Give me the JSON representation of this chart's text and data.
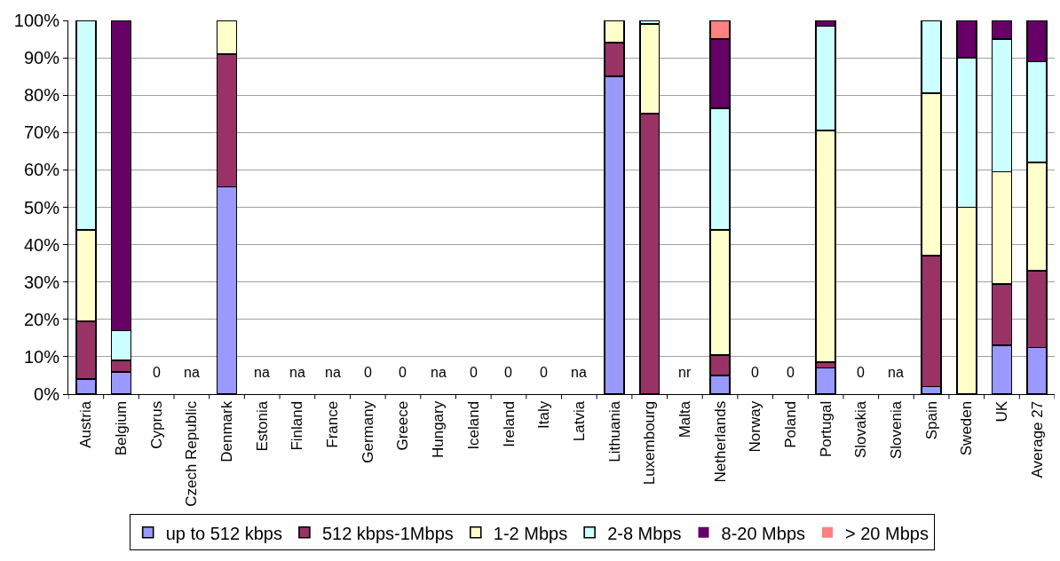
{
  "chart_data": {
    "type": "bar",
    "stacked": true,
    "grid": "y",
    "legend": "bottom",
    "categories": [
      "Austria",
      "Belgium",
      "Cyprus",
      "Czech Republic",
      "Denmark",
      "Estonia",
      "Finland",
      "France",
      "Germany",
      "Greece",
      "Hungary",
      "Iceland",
      "Ireland",
      "Italy",
      "Latvia",
      "Lithuania",
      "Luxembourg",
      "Malta",
      "Netherlands",
      "Norway",
      "Poland",
      "Portugal",
      "Slovakia",
      "Slovenia",
      "Spain",
      "Sweden",
      "UK",
      "Average 27"
    ],
    "series": [
      {
        "name": "up to 512 kbps",
        "color": "#9999ff",
        "values": [
          4,
          6,
          0,
          null,
          55.5,
          null,
          null,
          null,
          0,
          0,
          null,
          0,
          0,
          0,
          null,
          85,
          0,
          null,
          5,
          0,
          0,
          7,
          0,
          null,
          2,
          0,
          13,
          12.5
        ],
        "value_labels": [
          null,
          null,
          "0",
          "na",
          null,
          "na",
          "na",
          "na",
          "0",
          "0",
          "na",
          "0",
          "0",
          "0",
          "na",
          null,
          null,
          "nr",
          null,
          "0",
          "0",
          null,
          "0",
          "na",
          null,
          null,
          null,
          null
        ]
      },
      {
        "name": "512 kbps-1Mbps",
        "color": "#993366",
        "values": [
          15.5,
          3,
          null,
          null,
          35.5,
          null,
          null,
          null,
          null,
          null,
          null,
          null,
          null,
          null,
          null,
          9,
          75,
          null,
          5.5,
          null,
          null,
          1.5,
          null,
          null,
          35,
          0,
          16.5,
          20.5
        ]
      },
      {
        "name": "1-2 Mbps",
        "color": "#ffffcc",
        "values": [
          24.5,
          0,
          null,
          null,
          9,
          null,
          null,
          null,
          null,
          null,
          null,
          null,
          null,
          null,
          null,
          6,
          24,
          null,
          33.5,
          null,
          null,
          62,
          null,
          null,
          43.5,
          50,
          30,
          29
        ]
      },
      {
        "name": "2-8 Mbps",
        "color": "#ccffff",
        "values": [
          56,
          8,
          null,
          null,
          0,
          null,
          null,
          null,
          null,
          null,
          null,
          null,
          null,
          null,
          null,
          0,
          1,
          null,
          32.5,
          null,
          null,
          28,
          null,
          null,
          19.5,
          40,
          35.5,
          27
        ]
      },
      {
        "name": "8-20 Mbps",
        "color": "#660066",
        "values": [
          0,
          83,
          null,
          null,
          0,
          null,
          null,
          null,
          null,
          null,
          null,
          null,
          null,
          null,
          null,
          0,
          0,
          null,
          18.5,
          null,
          null,
          1.5,
          null,
          null,
          0,
          10,
          5,
          11
        ]
      },
      {
        "name": "> 20 Mbps",
        "color": "#ff8080",
        "values": [
          0,
          0,
          null,
          null,
          0,
          null,
          null,
          null,
          null,
          null,
          null,
          null,
          null,
          null,
          null,
          0,
          0,
          null,
          5,
          null,
          null,
          0,
          null,
          null,
          0,
          0,
          0,
          0
        ]
      }
    ],
    "ylim": [
      0,
      100
    ],
    "yticks": [
      {
        "value": 0,
        "label": "0%"
      },
      {
        "value": 10,
        "label": "10%"
      },
      {
        "value": 20,
        "label": "20%"
      },
      {
        "value": 30,
        "label": "30%"
      },
      {
        "value": 40,
        "label": "40%"
      },
      {
        "value": 50,
        "label": "50%"
      },
      {
        "value": 60,
        "label": "60%"
      },
      {
        "value": 70,
        "label": "70%"
      },
      {
        "value": 80,
        "label": "80%"
      },
      {
        "value": 90,
        "label": "90%"
      },
      {
        "value": 100,
        "label": "100%"
      }
    ]
  }
}
